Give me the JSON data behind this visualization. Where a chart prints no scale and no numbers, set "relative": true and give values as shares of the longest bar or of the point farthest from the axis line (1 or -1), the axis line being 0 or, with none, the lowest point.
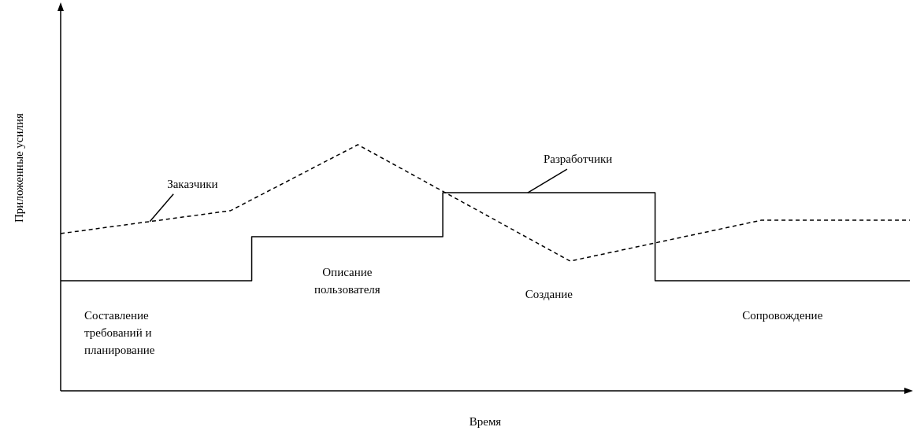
{
  "chart_data": {
    "type": "line",
    "relative": true,
    "legend": false,
    "marker": "none",
    "ylabel": "Приложенные усилия",
    "xlabel": "Время",
    "categories": [
      null,
      null,
      null,
      null,
      null,
      null,
      null,
      null,
      null,
      null,
      null,
      null,
      null,
      null,
      null,
      null,
      null,
      null,
      null,
      null,
      null,
      null,
      null,
      null,
      null,
      null,
      null,
      null,
      null,
      null,
      null,
      null,
      null,
      null,
      null,
      null,
      null,
      null,
      null,
      null,
      null
    ],
    "series": [
      {
        "name": "Заказчики",
        "color": "#000000",
        "line_style": "dashed",
        "values": [
          0.639,
          null,
          null,
          null,
          null,
          null,
          null,
          null,
          0.732,
          null,
          null,
          null,
          null,
          null,
          1,
          null,
          null,
          null,
          null,
          null,
          null,
          null,
          null,
          null,
          0.527,
          null,
          null,
          null,
          null,
          null,
          null,
          null,
          null,
          0.693,
          null,
          null,
          null,
          null,
          null,
          null,
          0.693
        ]
      },
      {
        "name": "Разработчики",
        "type": "step",
        "color": "#000000",
        "line_style": "solid",
        "values": [
          0.447,
          null,
          null,
          null,
          null,
          null,
          null,
          null,
          null,
          0.626,
          null,
          null,
          null,
          null,
          null,
          null,
          null,
          null,
          0.805,
          null,
          null,
          null,
          null,
          null,
          null,
          null,
          null,
          null,
          0.447,
          null,
          null,
          null,
          null,
          null,
          null,
          null,
          null,
          null,
          null,
          null,
          0.447
        ]
      }
    ],
    "annotations": [
      "Составление\nтребований и\nпланирование",
      "Описание\nпользователя",
      "Создание",
      "Сопровождение"
    ]
  }
}
